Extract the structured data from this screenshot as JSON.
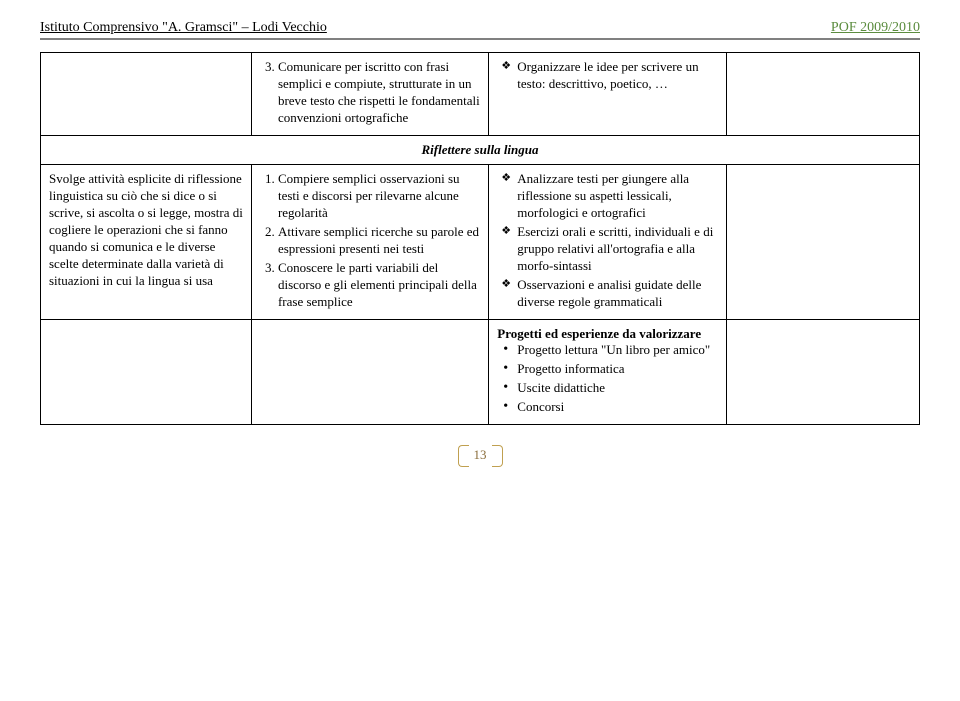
{
  "header": {
    "left": "Istituto Comprensivo \"A. Gramsci\" – Lodi Vecchio",
    "right": "POF 2009/2010"
  },
  "row1": {
    "col2_item": "Comunicare per iscritto con frasi semplici e compiute, strutturate in un breve testo che rispetti le fondamentali convenzioni ortografiche",
    "col3_item": "Organizzare le idee per scrivere un testo: descrittivo, poetico, …"
  },
  "section_title": "Riflettere sulla lingua",
  "row2": {
    "col1": "Svolge attività esplicite di riflessione linguistica su ciò che si dice o si scrive, si ascolta o si legge, mostra di cogliere le operazioni che si fanno quando si comunica e le diverse scelte determinate dalla varietà di situazioni in cui la lingua si usa",
    "col2": {
      "i1": "Compiere semplici osservazioni su testi e discorsi per rilevarne alcune regolarità",
      "i2": "Attivare semplici ricerche su parole ed espressioni presenti nei testi",
      "i3": "Conoscere le parti variabili del discorso e gli elementi principali della frase semplice"
    },
    "col3": {
      "i1": "Analizzare testi per giungere alla riflessione su aspetti lessicali, morfologici e ortografici",
      "i2": "Esercizi orali e scritti, individuali e di gruppo relativi all'ortografia e alla morfo-sintassi",
      "i3": "Osservazioni e analisi guidate delle diverse regole grammaticali"
    }
  },
  "row3": {
    "title": "Progetti ed esperienze da valorizzare",
    "items": {
      "i1": "Progetto lettura  \"Un libro per amico\"",
      "i2": "Progetto informatica",
      "i3": "Uscite didattiche",
      "i4": "Concorsi"
    }
  },
  "page_number": "13"
}
